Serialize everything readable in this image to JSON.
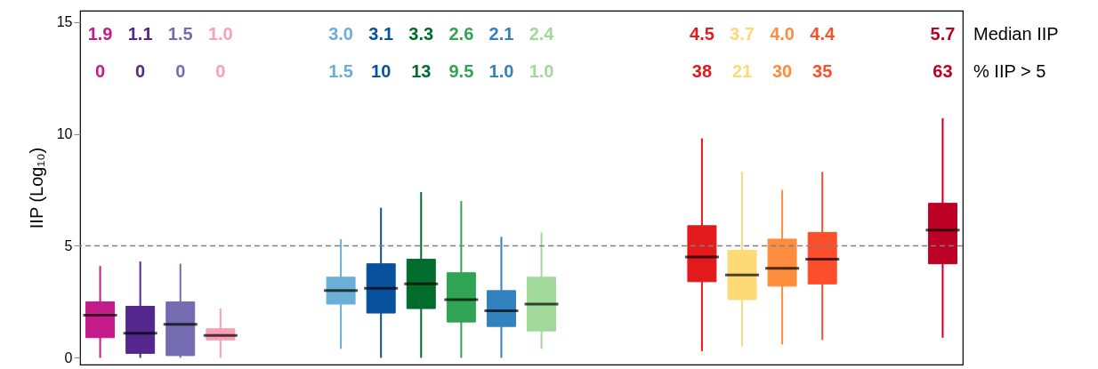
{
  "chart_data": {
    "type": "box",
    "ylabel": "IIP (Log₁₀)",
    "ylim": [
      -0.3,
      15.5
    ],
    "yticks": [
      0,
      5,
      10,
      15
    ],
    "tick_labels": "y",
    "categories": [
      null,
      null,
      null,
      null,
      null,
      null,
      null,
      null,
      null,
      null,
      null,
      null,
      null,
      null,
      null,
      null,
      null,
      null,
      null,
      null,
      null,
      null
    ],
    "boxes": [
      {
        "low": 0,
        "q1": 0.9,
        "median": 1.9,
        "q3": 2.5,
        "high": 4.1
      },
      {
        "low": 0,
        "q1": 0.2,
        "median": 1.1,
        "q3": 2.3,
        "high": 4.3
      },
      {
        "low": 0,
        "q1": 0.1,
        "median": 1.5,
        "q3": 2.5,
        "high": 4.2
      },
      {
        "low": 0,
        "q1": 0.8,
        "median": 1.0,
        "q3": 1.3,
        "high": 2.2
      },
      null,
      null,
      {
        "low": 0.4,
        "q1": 2.4,
        "median": 3.0,
        "q3": 3.6,
        "high": 5.3
      },
      {
        "low": 0,
        "q1": 2.0,
        "median": 3.1,
        "q3": 4.2,
        "high": 6.7
      },
      {
        "low": 0,
        "q1": 2.2,
        "median": 3.3,
        "q3": 4.4,
        "high": 7.4
      },
      {
        "low": 0,
        "q1": 1.6,
        "median": 2.6,
        "q3": 3.8,
        "high": 7.0
      },
      {
        "low": 0,
        "q1": 1.4,
        "median": 2.1,
        "q3": 3.0,
        "high": 5.4
      },
      {
        "low": 0.4,
        "q1": 1.2,
        "median": 2.4,
        "q3": 3.6,
        "high": 5.6
      },
      null,
      null,
      null,
      {
        "low": 0.3,
        "q1": 3.4,
        "median": 4.5,
        "q3": 5.9,
        "high": 9.8
      },
      {
        "low": 0.5,
        "q1": 2.6,
        "median": 3.7,
        "q3": 4.8,
        "high": 8.3
      },
      {
        "low": 0.6,
        "q1": 3.2,
        "median": 4.0,
        "q3": 5.3,
        "high": 7.5
      },
      {
        "low": 0.8,
        "q1": 3.3,
        "median": 4.4,
        "q3": 5.6,
        "high": 8.3
      },
      null,
      null,
      {
        "low": 0.9,
        "q1": 4.2,
        "median": 5.7,
        "q3": 6.9,
        "high": 10.7
      }
    ],
    "colors": [
      "#c51b8a",
      "#54278f",
      "#756bb1",
      "#fa9fb5",
      null,
      null,
      "#6baed6",
      "#08519c",
      "#006d2c",
      "#31a354",
      "#3182bd",
      "#a1d99b",
      null,
      null,
      null,
      "#e31a1c",
      "#fed976",
      "#fd8d3c",
      "#fc4e2a",
      null,
      null,
      "#bd0026"
    ],
    "value_labels": [
      "1.9",
      "1.1",
      "1.5",
      "1.0",
      null,
      null,
      "3.0",
      "3.1",
      "3.3",
      "2.6",
      "2.1",
      "2.4",
      null,
      null,
      null,
      "4.5",
      "3.7",
      "4.0",
      "4.4",
      null,
      null,
      "5.7"
    ],
    "annotations": [
      "Median IIP",
      "% IIP > 5",
      "0",
      "0",
      "0",
      "0",
      "1.5",
      "10",
      "13",
      "9.5",
      "1.0",
      "1.0",
      "38",
      "21",
      "30",
      "35",
      "63"
    ],
    "ref_lines": [
      {
        "axis": "y",
        "value": 5,
        "color": "#808080",
        "line_style": "dashed"
      }
    ]
  }
}
